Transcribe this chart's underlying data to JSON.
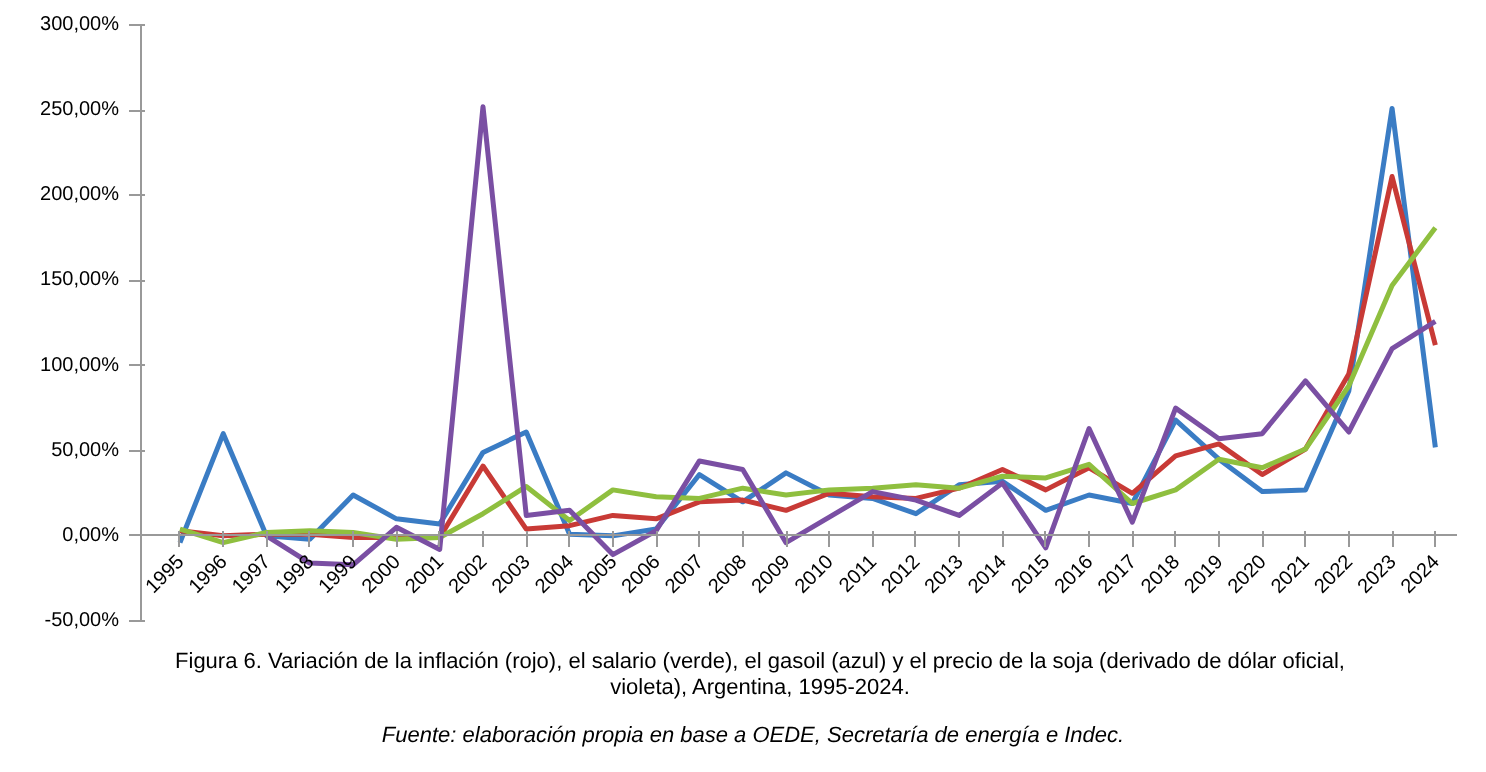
{
  "chart_data": {
    "type": "line",
    "title": "Figura 6. Variación de la inflación (rojo), el salario (verde), el gasoil (azul)  y el precio de la soja (derivado de dólar oficial, violeta), Argentina,  1995-2024.",
    "annotations": [
      "Fuente: elaboración propia en base a OEDE, Secretaría de energía e Indec."
    ],
    "categories": [
      "1995",
      "1996",
      "1997",
      "1998",
      "1999",
      "2000",
      "2001",
      "2002",
      "2003",
      "2004",
      "2005",
      "2006",
      "2007",
      "2008",
      "2009",
      "2010",
      "2011",
      "2012",
      "2013",
      "2014",
      "2015",
      "2016",
      "2017",
      "2018",
      "2019",
      "2020",
      "2021",
      "2022",
      "2023",
      "2024"
    ],
    "ylim": [
      -50,
      300
    ],
    "yticks": [
      {
        "value": -50,
        "label": "-50,00%"
      },
      {
        "value": 0,
        "label": "0,00%"
      },
      {
        "value": 50,
        "label": "50,00%"
      },
      {
        "value": 100,
        "label": "100,00%"
      },
      {
        "value": 150,
        "label": "150,00%"
      },
      {
        "value": 200,
        "label": "200,00%"
      },
      {
        "value": 250,
        "label": "250,00%"
      },
      {
        "value": 300,
        "label": "300,00%"
      }
    ],
    "grid": false,
    "marker": "none",
    "line_style": "solid",
    "series": [
      {
        "color": "#3a7cc4",
        "values": [
          -4,
          60,
          0,
          -2,
          24,
          10,
          7,
          49,
          61,
          1,
          0,
          4,
          36,
          20,
          37,
          24,
          22,
          13,
          30,
          32,
          15,
          24,
          19,
          68,
          45,
          26,
          27,
          85,
          251,
          52
        ]
      },
      {
        "color": "#c83a36",
        "values": [
          3,
          0,
          1,
          1,
          -1,
          -1,
          -1,
          41,
          4,
          6,
          12,
          10,
          20,
          21,
          15,
          25,
          23,
          22,
          28,
          39,
          27,
          40,
          25,
          47,
          54,
          36,
          51,
          95,
          211,
          112
        ]
      },
      {
        "color": "#8fbf3f",
        "values": [
          4,
          -4,
          2,
          3,
          2,
          -2,
          -1,
          13,
          29,
          9,
          27,
          23,
          22,
          28,
          24,
          27,
          28,
          30,
          28,
          35,
          34,
          42,
          19,
          27,
          45,
          40,
          51,
          88,
          147,
          181
        ]
      },
      {
        "color": "#7a4fa3",
        "values": [
          null,
          null,
          0,
          -16,
          -17,
          5,
          -8,
          252,
          12,
          15,
          -11,
          3,
          44,
          39,
          -4,
          11,
          26,
          21,
          12,
          31,
          -7,
          63,
          8,
          75,
          57,
          60,
          91,
          61,
          110,
          126
        ]
      }
    ]
  }
}
